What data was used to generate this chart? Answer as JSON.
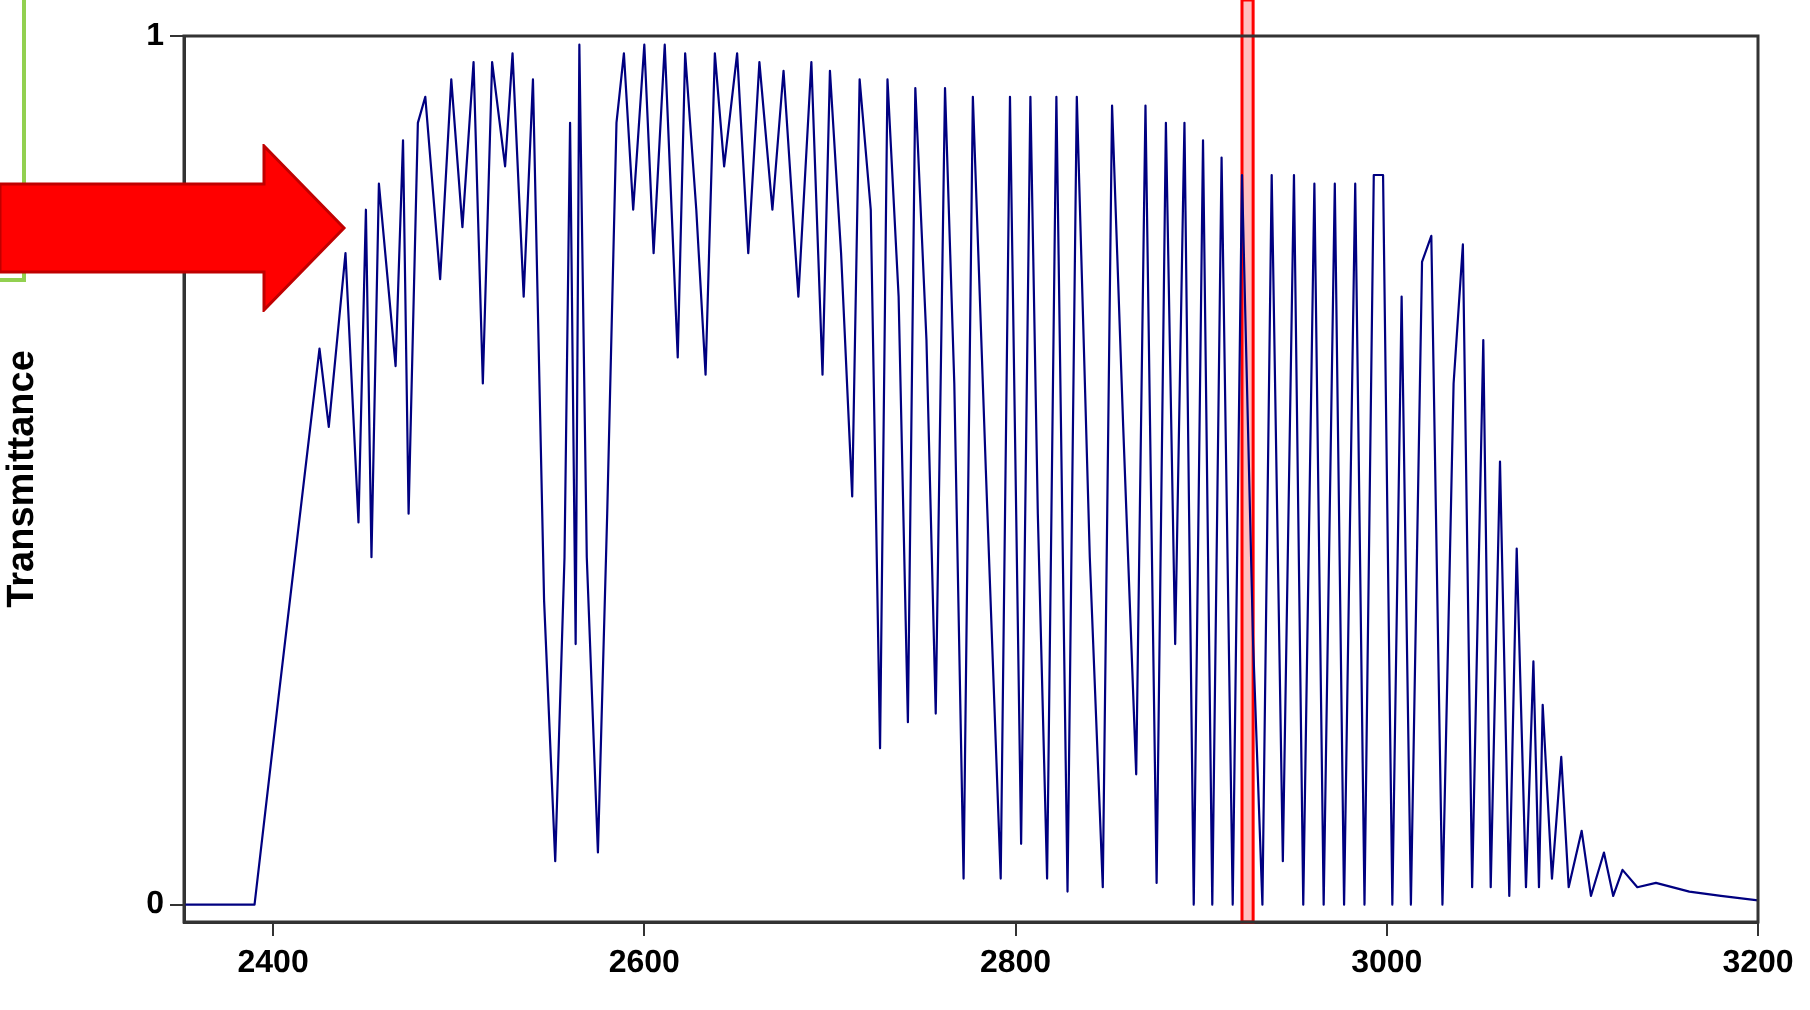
{
  "chart_data": {
    "type": "line",
    "ylabel": "Transmittance",
    "xlim": [
      2352,
      3200
    ],
    "xticks": [
      2400,
      2600,
      2800,
      3000,
      3200
    ],
    "ylim": [
      -0.02,
      1
    ],
    "yticks": [
      0,
      1
    ],
    "grid": false,
    "legend": false,
    "marker": "none",
    "line_style": "solid",
    "bands": [
      {
        "axis": "x",
        "from": 2922,
        "to": 2928,
        "color": "#ff0000"
      }
    ],
    "series": [
      {
        "color": "#000080",
        "x": [
          2352,
          2390,
          2403,
          2414,
          2425,
          2430,
          2439,
          2446,
          2450,
          2453,
          2457,
          2466,
          2470,
          2473,
          2478,
          2482,
          2490,
          2496,
          2502,
          2508,
          2513,
          2518,
          2525,
          2529,
          2535,
          2540,
          2546,
          2552,
          2557,
          2560,
          2563,
          2565,
          2569,
          2575,
          2580,
          2585,
          2589,
          2594,
          2600,
          2605,
          2611,
          2618,
          2622,
          2628,
          2633,
          2638,
          2643,
          2650,
          2656,
          2662,
          2669,
          2675,
          2683,
          2690,
          2696,
          2700,
          2706,
          2712,
          2716,
          2722,
          2727,
          2731,
          2737,
          2742,
          2746,
          2752,
          2757,
          2762,
          2767,
          2772,
          2777,
          2784,
          2792,
          2797,
          2803,
          2808,
          2812,
          2817,
          2822,
          2828,
          2833,
          2840,
          2847,
          2852,
          2858,
          2865,
          2870,
          2876,
          2881,
          2886,
          2891,
          2896,
          2901,
          2906,
          2911,
          2917,
          2922,
          2928,
          2933,
          2938,
          2944,
          2950,
          2955,
          2961,
          2966,
          2972,
          2977,
          2983,
          2988,
          2993,
          2998,
          3003,
          3008,
          3013,
          3019,
          3024,
          3030,
          3036,
          3041,
          3046,
          3052,
          3056,
          3061,
          3066,
          3070,
          3075,
          3079,
          3082,
          3084,
          3089,
          3094,
          3098,
          3105,
          3110,
          3117,
          3122,
          3127,
          3135,
          3145,
          3163,
          3180,
          3200
        ],
        "values": [
          0,
          0,
          0.24,
          0.44,
          0.64,
          0.55,
          0.75,
          0.44,
          0.8,
          0.4,
          0.83,
          0.62,
          0.88,
          0.45,
          0.9,
          0.93,
          0.72,
          0.95,
          0.78,
          0.97,
          0.6,
          0.97,
          0.85,
          0.98,
          0.7,
          0.95,
          0.35,
          0.05,
          0.4,
          0.9,
          0.3,
          0.99,
          0.4,
          0.06,
          0.45,
          0.9,
          0.98,
          0.8,
          0.99,
          0.75,
          0.99,
          0.63,
          0.98,
          0.8,
          0.61,
          0.98,
          0.85,
          0.98,
          0.75,
          0.97,
          0.8,
          0.96,
          0.7,
          0.97,
          0.61,
          0.96,
          0.75,
          0.47,
          0.95,
          0.8,
          0.18,
          0.95,
          0.7,
          0.21,
          0.94,
          0.65,
          0.22,
          0.94,
          0.6,
          0.03,
          0.93,
          0.5,
          0.03,
          0.93,
          0.07,
          0.93,
          0.45,
          0.03,
          0.93,
          0.015,
          0.93,
          0.4,
          0.02,
          0.92,
          0.55,
          0.15,
          0.92,
          0.025,
          0.9,
          0.3,
          0.9,
          0,
          0.88,
          0,
          0.86,
          0,
          0.84,
          0.3,
          0,
          0.84,
          0.05,
          0.84,
          0,
          0.83,
          0,
          0.83,
          0,
          0.83,
          0,
          0.84,
          0.84,
          0,
          0.7,
          0,
          0.74,
          0.77,
          0,
          0.6,
          0.76,
          0.02,
          0.65,
          0.02,
          0.51,
          0.01,
          0.41,
          0.02,
          0.28,
          0.02,
          0.23,
          0.03,
          0.17,
          0.02,
          0.085,
          0.01,
          0.06,
          0.01,
          0.04,
          0.02,
          0.025,
          0.015,
          0.01,
          0.005
        ]
      }
    ]
  }
}
